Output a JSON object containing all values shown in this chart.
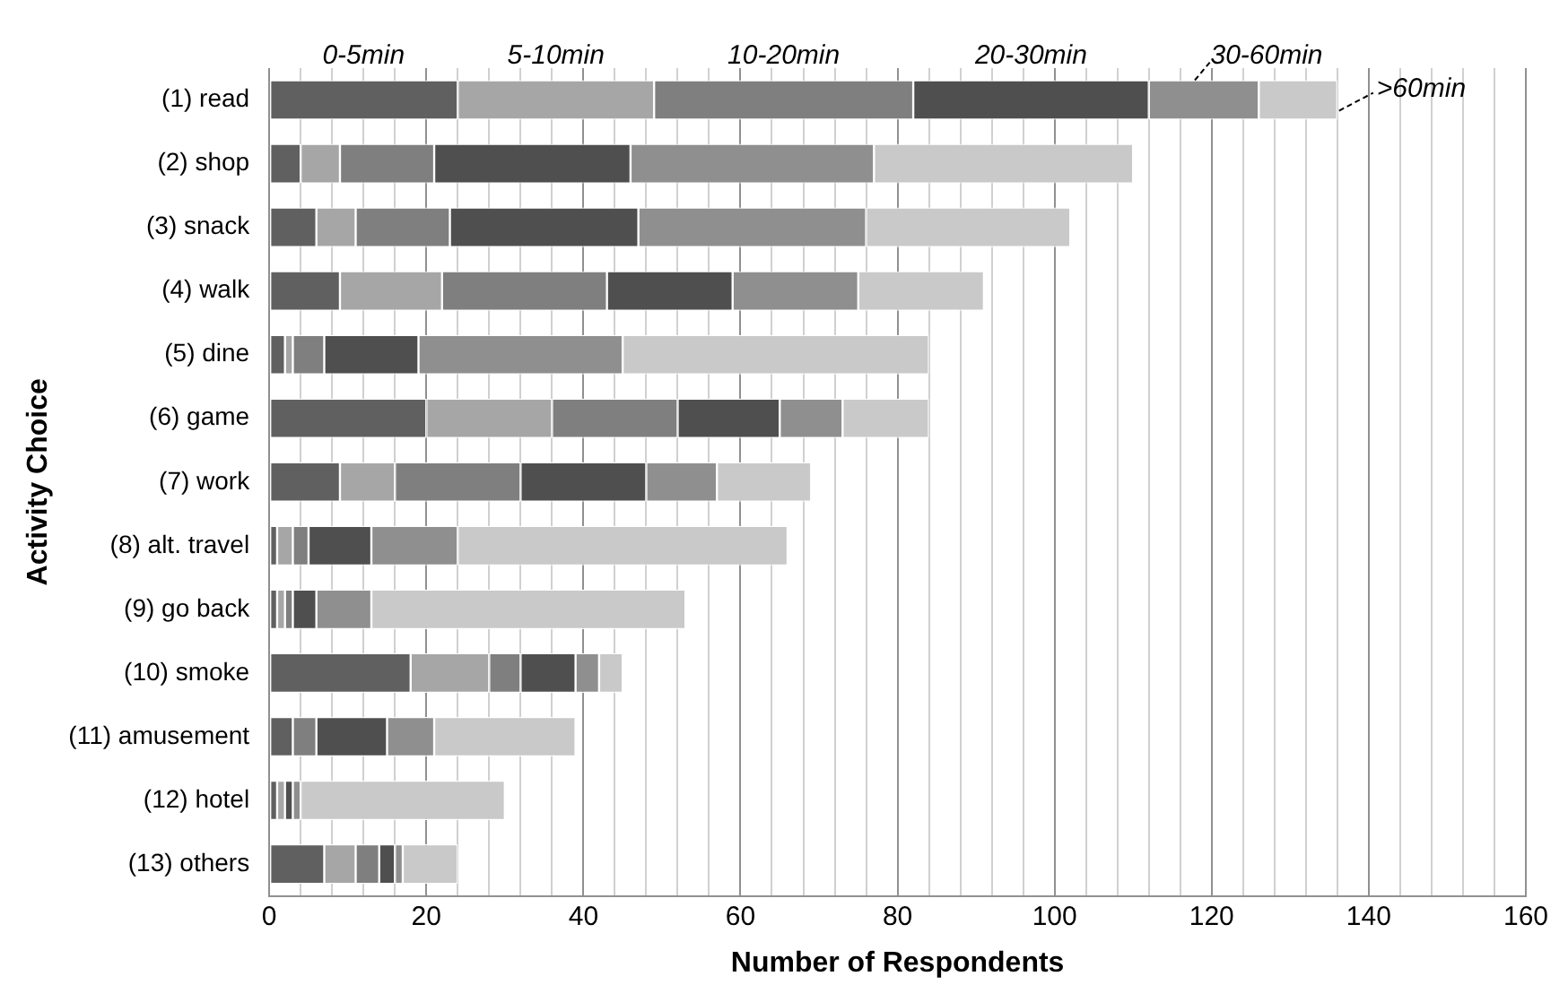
{
  "chart_data": {
    "type": "bar",
    "orientation": "horizontal",
    "stacked": true,
    "xlabel": "Number of Respondents",
    "ylabel": "Activity Choice",
    "categories": [
      "(1) read",
      "(2) shop",
      "(3) snack",
      "(4) walk",
      "(5) dine",
      "(6) game",
      "(7) work",
      "(8) alt. travel",
      "(9) go back",
      "(10) smoke",
      "(11) amusement",
      "(12) hotel",
      "(13) others"
    ],
    "series": [
      {
        "name": "0-5min",
        "color": "#606060",
        "values": [
          24,
          4,
          6,
          9,
          2,
          20,
          9,
          1,
          1,
          18,
          3,
          1,
          7
        ]
      },
      {
        "name": "5-10min",
        "color": "#a6a6a6",
        "values": [
          25,
          5,
          5,
          13,
          1,
          16,
          7,
          2,
          1,
          10,
          0,
          1,
          4
        ]
      },
      {
        "name": "10-20min",
        "color": "#7f7f7f",
        "values": [
          33,
          12,
          12,
          21,
          4,
          16,
          16,
          2,
          1,
          4,
          3,
          0,
          3
        ]
      },
      {
        "name": "20-30min",
        "color": "#4f4f4f",
        "values": [
          30,
          25,
          24,
          16,
          12,
          13,
          16,
          8,
          3,
          7,
          9,
          1,
          2
        ]
      },
      {
        "name": "30-60min",
        "color": "#8f8f8f",
        "values": [
          14,
          31,
          29,
          16,
          26,
          8,
          9,
          11,
          7,
          3,
          6,
          1,
          1
        ]
      },
      {
        "name": ">60min",
        "color": "#c9c9c9",
        "values": [
          10,
          33,
          26,
          16,
          39,
          11,
          12,
          42,
          40,
          3,
          18,
          26,
          7
        ]
      }
    ],
    "xlim": [
      0,
      160
    ],
    "xticks": [
      0,
      {
        "value": 4,
        "label": null
      },
      {
        "value": 8,
        "label": null
      },
      {
        "value": 12,
        "label": null
      },
      {
        "value": 16,
        "label": null
      },
      20,
      {
        "value": 24,
        "label": null
      },
      {
        "value": 28,
        "label": null
      },
      {
        "value": 32,
        "label": null
      },
      {
        "value": 36,
        "label": null
      },
      40,
      {
        "value": 44,
        "label": null
      },
      {
        "value": 48,
        "label": null
      },
      {
        "value": 52,
        "label": null
      },
      {
        "value": 56,
        "label": null
      },
      60,
      {
        "value": 64,
        "label": null
      },
      {
        "value": 68,
        "label": null
      },
      {
        "value": 72,
        "label": null
      },
      {
        "value": 76,
        "label": null
      },
      80,
      {
        "value": 84,
        "label": null
      },
      {
        "value": 88,
        "label": null
      },
      {
        "value": 92,
        "label": null
      },
      {
        "value": 96,
        "label": null
      },
      100,
      {
        "value": 104,
        "label": null
      },
      {
        "value": 108,
        "label": null
      },
      {
        "value": 112,
        "label": null
      },
      {
        "value": 116,
        "label": null
      },
      120,
      {
        "value": 124,
        "label": null
      },
      {
        "value": 128,
        "label": null
      },
      {
        "value": 132,
        "label": null
      },
      {
        "value": 136,
        "label": null
      },
      140,
      {
        "value": 144,
        "label": null
      },
      {
        "value": 148,
        "label": null
      },
      {
        "value": 152,
        "label": null
      },
      {
        "value": 156,
        "label": null
      },
      160
    ],
    "grid": "x",
    "legend": false
  }
}
